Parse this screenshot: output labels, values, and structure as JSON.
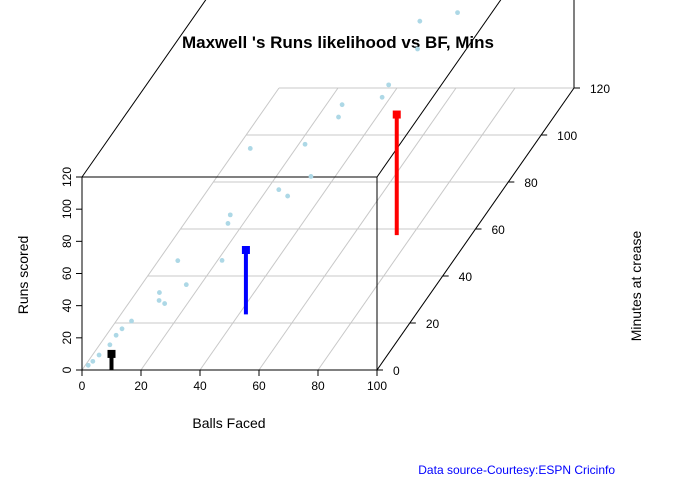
{
  "chart_data": {
    "type": "scatter",
    "title": "Maxwell 's Runs likelihood vs BF, Mins",
    "xlabel": "Balls Faced",
    "ylabel": "Runs scored",
    "zlabel": "Minutes at crease",
    "source": "Data source-Courtesy:ESPN Cricinfo",
    "xlim": [
      0,
      100
    ],
    "ylim": [
      0,
      120
    ],
    "zlim": [
      0,
      120
    ],
    "x_ticks": [
      "0",
      "20",
      "40",
      "60",
      "80",
      "100"
    ],
    "y_ticks": [
      "0",
      "20",
      "40",
      "60",
      "80",
      "100",
      "120"
    ],
    "z_ticks": [
      "0",
      "20",
      "40",
      "60",
      "80",
      "100",
      "120"
    ],
    "grid": true,
    "point_color": "#add8e6",
    "points": [
      {
        "x": 1,
        "z": 2,
        "y": 0
      },
      {
        "x": 2,
        "z": 3,
        "y": 1
      },
      {
        "x": 3,
        "z": 5,
        "y": 2
      },
      {
        "x": 5,
        "z": 8,
        "y": 4
      },
      {
        "x": 6,
        "z": 10,
        "y": 7
      },
      {
        "x": 9,
        "z": 14,
        "y": 10
      },
      {
        "x": 8,
        "z": 10,
        "y": 11
      },
      {
        "x": 15,
        "z": 20,
        "y": 14
      },
      {
        "x": 18,
        "z": 18,
        "y": 15
      },
      {
        "x": 14,
        "z": 22,
        "y": 16
      },
      {
        "x": 28,
        "z": 35,
        "y": 17
      },
      {
        "x": 22,
        "z": 24,
        "y": 18
      },
      {
        "x": 18,
        "z": 26,
        "y": 30
      },
      {
        "x": 28,
        "z": 40,
        "y": 38
      },
      {
        "x": 43,
        "z": 48,
        "y": 38
      },
      {
        "x": 30,
        "z": 35,
        "y": 40
      },
      {
        "x": 47,
        "z": 55,
        "y": 40
      },
      {
        "x": 40,
        "z": 48,
        "y": 42
      },
      {
        "x": 48,
        "z": 70,
        "y": 55
      },
      {
        "x": 45,
        "z": 55,
        "y": 60
      },
      {
        "x": 60,
        "z": 75,
        "y": 60
      },
      {
        "x": 52,
        "z": 65,
        "y": 70
      },
      {
        "x": 32,
        "z": 45,
        "y": 72
      },
      {
        "x": 65,
        "z": 70,
        "y": 75
      },
      {
        "x": 72,
        "z": 75,
        "y": 90
      },
      {
        "x": 80,
        "z": 85,
        "y": 98
      },
      {
        "x": 70,
        "z": 80,
        "y": 100
      },
      {
        "x": 82,
        "z": 100,
        "y": 116
      },
      {
        "x": 90,
        "z": 110,
        "y": 118
      },
      {
        "x": 92,
        "z": 110,
        "y": 126
      },
      {
        "x": 100,
        "z": 120,
        "y": 116
      }
    ],
    "likelihood_bars": [
      {
        "x": 10,
        "z": 0,
        "y_from": 0,
        "y_to": 10,
        "color": "#000000"
      },
      {
        "x": 50,
        "z": 10,
        "y_from": 20,
        "y_to": 60,
        "color": "#0000ff"
      },
      {
        "x": 90,
        "z": 30,
        "y_from": 40,
        "y_to": 115,
        "color": "#ff0000"
      }
    ]
  }
}
